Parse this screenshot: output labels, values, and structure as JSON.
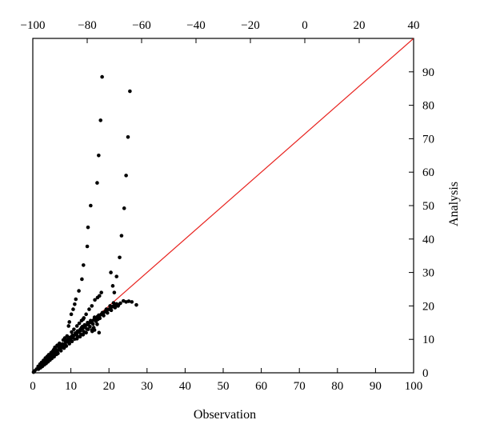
{
  "chart_data": {
    "type": "scatter",
    "title": "",
    "xlabel": "Observation",
    "ylabel": "Analysis",
    "xlim": [
      0,
      100
    ],
    "ylim": [
      0,
      100
    ],
    "x_ticks": [
      0,
      10,
      20,
      30,
      40,
      50,
      60,
      70,
      80,
      90,
      100
    ],
    "y_ticks": [
      0,
      10,
      20,
      30,
      40,
      50,
      60,
      70,
      80,
      90
    ],
    "top_axis": {
      "range": [
        -100,
        40
      ],
      "ticks": [
        -100,
        -80,
        -60,
        -40,
        -20,
        0,
        20,
        40
      ],
      "tick_labels": [
        "−100",
        "−80",
        "−60",
        "−40",
        "−20",
        "0",
        "20",
        "40"
      ]
    },
    "grid": false,
    "colors": {
      "points": "#000000",
      "reference_line": "#e8231f",
      "frame": "#000000"
    },
    "reference_line": {
      "from": [
        0,
        0
      ],
      "to": [
        100,
        100
      ]
    },
    "series": [
      {
        "name": "",
        "points": [
          [
            18.2,
            88.5
          ],
          [
            25.5,
            84.2
          ],
          [
            17.8,
            75.5
          ],
          [
            25.0,
            70.5
          ],
          [
            17.3,
            65.0
          ],
          [
            24.5,
            59.0
          ],
          [
            16.9,
            56.8
          ],
          [
            24.0,
            49.2
          ],
          [
            15.2,
            50.0
          ],
          [
            14.5,
            43.5
          ],
          [
            23.3,
            41.0
          ],
          [
            14.3,
            37.8
          ],
          [
            22.8,
            34.5
          ],
          [
            13.3,
            32.2
          ],
          [
            20.5,
            30.0
          ],
          [
            22.0,
            28.8
          ],
          [
            12.9,
            28.0
          ],
          [
            21.0,
            26.0
          ],
          [
            12.1,
            24.5
          ],
          [
            21.4,
            24.0
          ],
          [
            18.0,
            24.0
          ],
          [
            17.5,
            23.0
          ],
          [
            11.3,
            22.0
          ],
          [
            17.0,
            22.5
          ],
          [
            16.3,
            21.8
          ],
          [
            11.0,
            20.5
          ],
          [
            15.5,
            20.0
          ],
          [
            10.6,
            19.0
          ],
          [
            14.8,
            19.0
          ],
          [
            10.1,
            17.5
          ],
          [
            14.0,
            17.5
          ],
          [
            13.2,
            16.0
          ],
          [
            9.6,
            15.2
          ],
          [
            17.1,
            16.0
          ],
          [
            9.4,
            14.0
          ],
          [
            16.9,
            14.5
          ],
          [
            16.0,
            13.5
          ],
          [
            17.4,
            12.0
          ],
          [
            15.5,
            12.8
          ],
          [
            14.5,
            13.0
          ],
          [
            13.0,
            13.8
          ],
          [
            12.5,
            13.0
          ],
          [
            27.2,
            20.3
          ],
          [
            26.0,
            21.2
          ],
          [
            25.2,
            21.4
          ],
          [
            24.5,
            21.2
          ],
          [
            23.8,
            21.5
          ],
          [
            23.0,
            20.8
          ],
          [
            22.5,
            20.3
          ],
          [
            22.0,
            20.6
          ],
          [
            21.5,
            20.1
          ],
          [
            21.0,
            19.8
          ],
          [
            20.5,
            19.5
          ],
          [
            20.0,
            19.0
          ],
          [
            19.5,
            18.8
          ],
          [
            19.0,
            18.3
          ],
          [
            18.5,
            17.8
          ],
          [
            18.0,
            17.5
          ],
          [
            17.5,
            17.0
          ],
          [
            17.0,
            16.8
          ],
          [
            16.5,
            16.2
          ],
          [
            16.0,
            15.8
          ],
          [
            15.5,
            15.4
          ],
          [
            15.0,
            15.0
          ],
          [
            14.5,
            14.5
          ],
          [
            14.0,
            14.2
          ],
          [
            13.5,
            13.6
          ],
          [
            13.0,
            13.2
          ],
          [
            12.5,
            12.6
          ],
          [
            12.0,
            12.2
          ],
          [
            11.5,
            11.6
          ],
          [
            11.0,
            11.3
          ],
          [
            10.5,
            10.6
          ],
          [
            10.0,
            10.2
          ],
          [
            9.5,
            9.6
          ],
          [
            9.0,
            9.3
          ],
          [
            8.5,
            8.6
          ],
          [
            8.0,
            8.3
          ],
          [
            7.5,
            7.6
          ],
          [
            7.0,
            7.3
          ],
          [
            6.5,
            6.6
          ],
          [
            6.0,
            6.3
          ],
          [
            5.5,
            5.6
          ],
          [
            5.0,
            5.3
          ],
          [
            4.5,
            4.7
          ],
          [
            4.0,
            4.3
          ],
          [
            3.5,
            3.6
          ],
          [
            3.0,
            3.2
          ],
          [
            2.5,
            2.6
          ],
          [
            2.0,
            2.2
          ],
          [
            1.5,
            1.6
          ],
          [
            1.0,
            1.1
          ],
          [
            0.5,
            0.6
          ],
          [
            0.2,
            0.2
          ],
          [
            7.8,
            8.6
          ],
          [
            7.2,
            8.2
          ],
          [
            6.8,
            7.8
          ],
          [
            6.0,
            7.2
          ],
          [
            5.5,
            6.9
          ],
          [
            5.2,
            6.4
          ],
          [
            4.8,
            6.0
          ],
          [
            4.2,
            5.4
          ],
          [
            3.8,
            4.9
          ],
          [
            3.3,
            4.4
          ],
          [
            2.8,
            3.7
          ],
          [
            2.3,
            3.1
          ],
          [
            1.9,
            2.6
          ],
          [
            1.4,
            1.9
          ],
          [
            8.6,
            9.4
          ],
          [
            9.2,
            10.0
          ],
          [
            9.8,
            10.6
          ],
          [
            10.4,
            11.2
          ],
          [
            11.2,
            11.9
          ],
          [
            11.8,
            12.5
          ],
          [
            12.8,
            13.5
          ],
          [
            13.6,
            14.3
          ],
          [
            14.4,
            15.0
          ],
          [
            15.2,
            15.6
          ],
          [
            16.2,
            16.6
          ],
          [
            17.3,
            17.2
          ],
          [
            18.3,
            18.0
          ],
          [
            19.3,
            19.0
          ],
          [
            20.3,
            20.0
          ],
          [
            21.2,
            20.9
          ],
          [
            6.6,
            5.8
          ],
          [
            6.2,
            5.5
          ],
          [
            5.6,
            4.8
          ],
          [
            5.0,
            4.3
          ],
          [
            4.5,
            3.8
          ],
          [
            4.0,
            3.3
          ],
          [
            3.5,
            2.8
          ],
          [
            3.0,
            2.4
          ],
          [
            2.5,
            1.9
          ],
          [
            2.0,
            1.5
          ],
          [
            1.5,
            1.1
          ],
          [
            7.4,
            6.6
          ],
          [
            8.2,
            7.4
          ],
          [
            8.8,
            8.0
          ],
          [
            9.6,
            8.7
          ],
          [
            10.3,
            9.4
          ],
          [
            11.0,
            10.1
          ],
          [
            11.8,
            10.8
          ],
          [
            12.6,
            11.5
          ],
          [
            13.4,
            12.3
          ],
          [
            14.2,
            13.1
          ],
          [
            15.0,
            13.8
          ],
          [
            15.8,
            14.6
          ],
          [
            16.6,
            15.4
          ],
          [
            17.6,
            16.3
          ],
          [
            18.6,
            17.1
          ],
          [
            19.6,
            17.9
          ],
          [
            20.6,
            18.7
          ],
          [
            21.6,
            19.5
          ],
          [
            22.4,
            20.0
          ],
          [
            11.6,
            14.0
          ],
          [
            12.2,
            14.8
          ],
          [
            12.8,
            15.6
          ],
          [
            13.4,
            16.4
          ],
          [
            10.8,
            13.0
          ],
          [
            10.2,
            12.2
          ],
          [
            9.0,
            11.0
          ],
          [
            8.4,
            10.4
          ],
          [
            8.0,
            9.8
          ],
          [
            7.0,
            8.8
          ],
          [
            6.4,
            8.2
          ],
          [
            5.8,
            7.6
          ],
          [
            15.6,
            12.4
          ],
          [
            16.2,
            12.8
          ],
          [
            14.0,
            12.0
          ],
          [
            13.2,
            11.4
          ],
          [
            12.4,
            10.8
          ],
          [
            11.6,
            10.2
          ]
        ]
      }
    ]
  }
}
